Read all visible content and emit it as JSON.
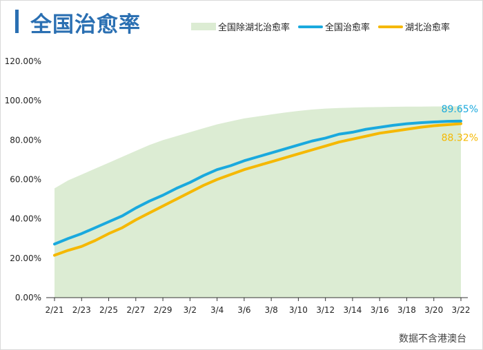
{
  "title": "全国治愈率",
  "source": "数据不含港澳台",
  "legend": {
    "area": "全国除湖北治愈率",
    "national": "全国治愈率",
    "hubei": "湖北治愈率"
  },
  "colors": {
    "area": "#dcecd3",
    "national": "#1aa9de",
    "hubei": "#f5b800",
    "title": "#2a6fb2"
  },
  "end_labels": {
    "national": "89.65%",
    "hubei": "88.32%"
  },
  "chart_data": {
    "type": "line",
    "categories": [
      "2/21",
      "2/22",
      "2/23",
      "2/24",
      "2/25",
      "2/26",
      "2/27",
      "2/28",
      "2/29",
      "3/1",
      "3/2",
      "3/3",
      "3/4",
      "3/5",
      "3/6",
      "3/7",
      "3/8",
      "3/9",
      "3/10",
      "3/11",
      "3/12",
      "3/13",
      "3/14",
      "3/15",
      "3/16",
      "3/17",
      "3/18",
      "3/19",
      "3/20",
      "3/21",
      "3/22"
    ],
    "tick_labels": [
      "2/21",
      "2/23",
      "2/25",
      "2/27",
      "2/29",
      "3/2",
      "3/4",
      "3/6",
      "3/8",
      "3/10",
      "3/12",
      "3/14",
      "3/16",
      "3/18",
      "3/20",
      "3/22"
    ],
    "y_ticks": [
      "0.00%",
      "20.00%",
      "40.00%",
      "60.00%",
      "80.00%",
      "100.00%",
      "120.00%"
    ],
    "ylim": [
      0,
      120
    ],
    "grid": false,
    "legend_position": "top-right",
    "series": [
      {
        "name": "全国除湖北治愈率",
        "type": "area",
        "values": [
          55.5,
          59.5,
          62.5,
          65.5,
          68.5,
          71.5,
          74.5,
          77.5,
          80,
          82,
          84,
          86,
          88,
          89.5,
          91,
          92,
          93,
          94,
          94.8,
          95.5,
          96,
          96.3,
          96.5,
          96.7,
          96.8,
          96.9,
          97,
          97,
          97.1,
          97.1,
          97.2
        ]
      },
      {
        "name": "全国治愈率",
        "type": "line",
        "values": [
          27.2,
          30,
          32.5,
          35.5,
          38.5,
          41.5,
          45.5,
          49,
          52,
          55.5,
          58.5,
          62,
          65,
          67,
          69.5,
          71.5,
          73.5,
          75.5,
          77.5,
          79.5,
          81,
          83,
          84,
          85.5,
          86.5,
          87.5,
          88.3,
          88.8,
          89.2,
          89.5,
          89.65
        ]
      },
      {
        "name": "湖北治愈率",
        "type": "line",
        "values": [
          21.5,
          24,
          26,
          29,
          32.5,
          35.5,
          39.5,
          43,
          46.5,
          50,
          53.5,
          57,
          60,
          62.5,
          65,
          67,
          69,
          71,
          73,
          75,
          77,
          79,
          80.5,
          82,
          83.5,
          84.5,
          85.5,
          86.5,
          87.3,
          87.8,
          88.32
        ]
      }
    ]
  }
}
